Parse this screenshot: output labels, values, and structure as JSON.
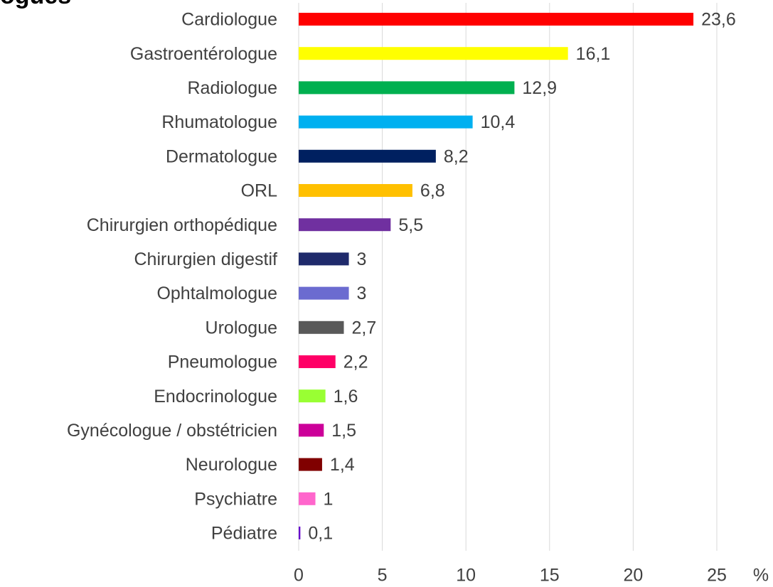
{
  "chart_data": {
    "type": "barh",
    "title": "ogues",
    "categories": [
      "Cardiologue",
      "Gastroentérologue",
      "Radiologue",
      "Rhumatologue",
      "Dermatologue",
      "ORL",
      "Chirurgien orthopédique",
      "Chirurgien digestif",
      "Ophtalmologue",
      "Urologue",
      "Pneumologue",
      "Endocrinologue",
      "Gynécologue / obstétricien",
      "Neurologue",
      "Psychiatre",
      "Pédiatre"
    ],
    "values": [
      23.6,
      16.1,
      12.9,
      10.4,
      8.2,
      6.8,
      5.5,
      3,
      3,
      2.7,
      2.2,
      1.6,
      1.5,
      1.4,
      1,
      0.1
    ],
    "value_labels": [
      "23,6",
      "16,1",
      "12,9",
      "10,4",
      "8,2",
      "6,8",
      "5,5",
      "3",
      "3",
      "2,7",
      "2,2",
      "1,6",
      "1,5",
      "1,4",
      "1",
      "0,1"
    ],
    "colors": [
      "#ff0000",
      "#ffff00",
      "#00b050",
      "#00b0f0",
      "#002060",
      "#ffc000",
      "#7030a0",
      "#1f2a6b",
      "#6b6bd0",
      "#595959",
      "#ff0066",
      "#99ff33",
      "#cc0099",
      "#800000",
      "#ff66cc",
      "#6600cc"
    ],
    "xlabel": "%",
    "xlim": [
      0,
      25
    ],
    "xticks": [
      0,
      5,
      10,
      15,
      20,
      25
    ],
    "grid": true
  }
}
